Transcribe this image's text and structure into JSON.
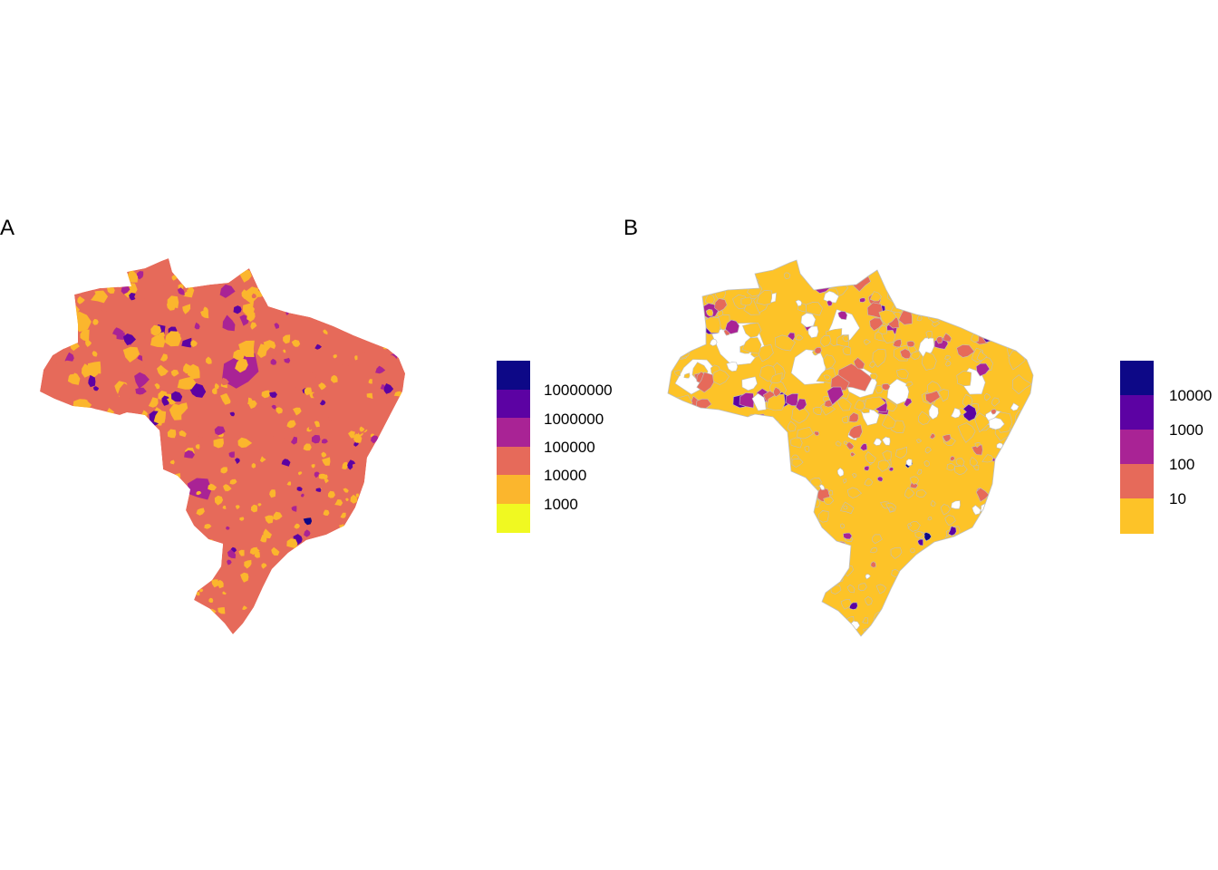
{
  "panels": [
    {
      "label": "A",
      "default_fill": "#E66A5A",
      "legend": {
        "colors": [
          "#0D0887",
          "#5C02A3",
          "#A92395",
          "#E66A5A",
          "#FBB62D",
          "#F0F921"
        ],
        "labels": [
          "10000000",
          "1000000",
          "100000",
          "10000",
          "1000"
        ]
      }
    },
    {
      "label": "B",
      "default_fill": "#FDC328",
      "missing_fill": "#FFFFFF",
      "border_color": "#BEBEBE",
      "legend": {
        "colors": [
          "#0D0887",
          "#5C02A3",
          "#A92395",
          "#E66A5A",
          "#FDC328"
        ],
        "labels": [
          "10000",
          "1000",
          "100",
          "10"
        ]
      }
    }
  ]
}
